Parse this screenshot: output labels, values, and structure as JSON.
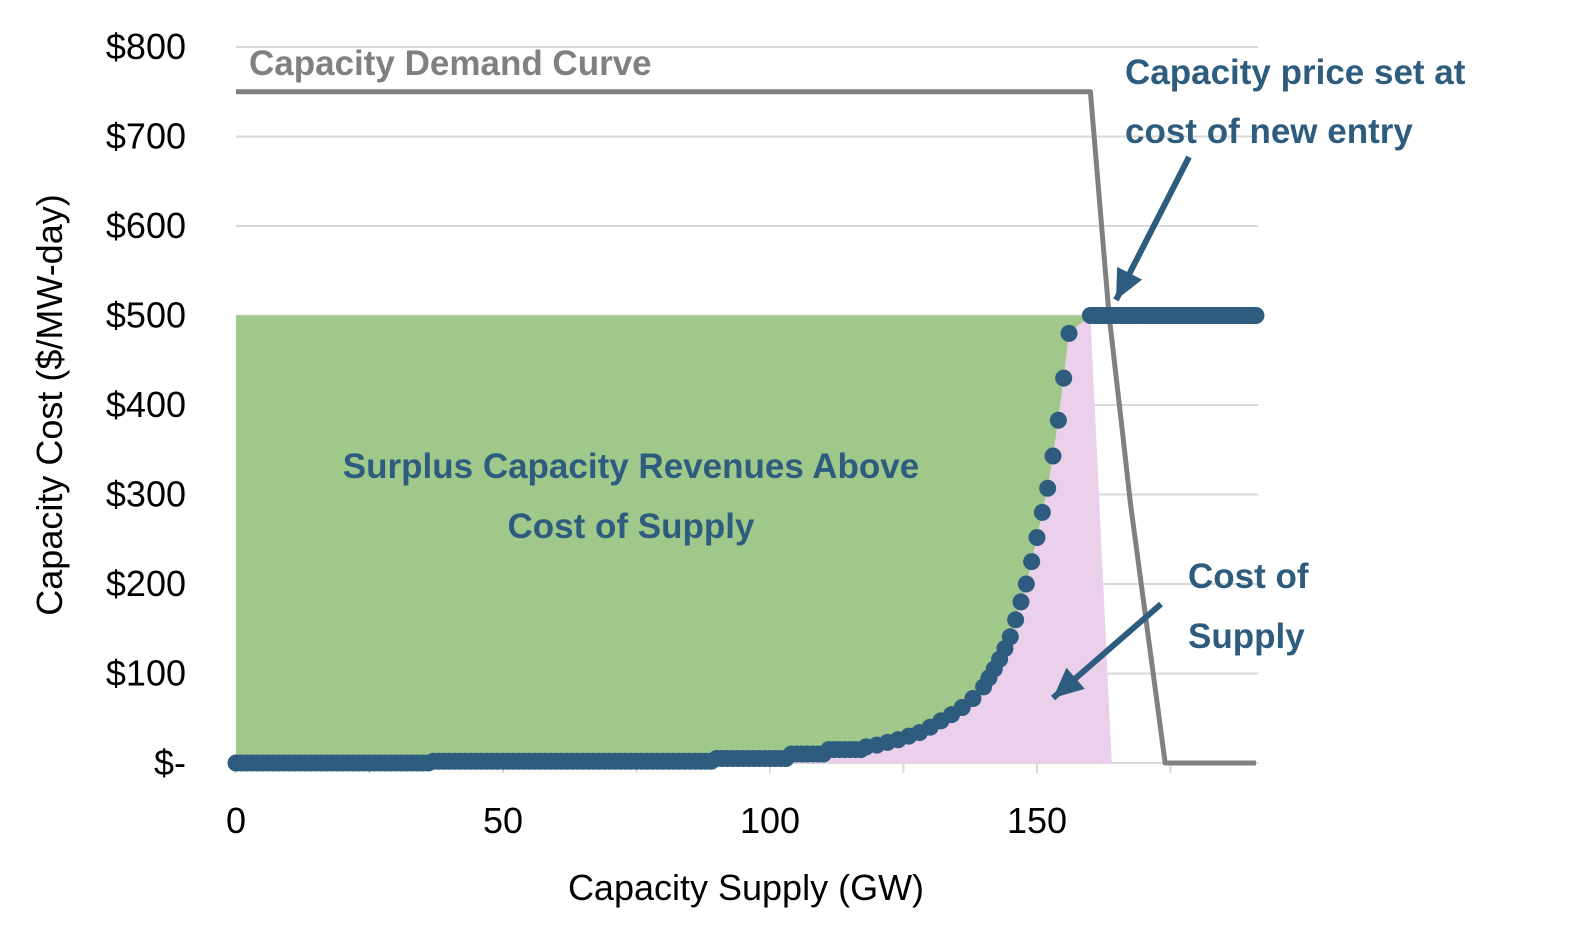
{
  "chart_data": {
    "type": "scatter",
    "xlabel": "Capacity Supply (GW)",
    "ylabel": "Capacity Cost ($/MW-day)",
    "xlim": [
      0,
      190
    ],
    "ylim": [
      0,
      800
    ],
    "x_ticks": [
      "0",
      "50",
      "100",
      "150"
    ],
    "y_ticks": [
      "$-",
      "$100",
      "$200",
      "$300",
      "$400",
      "$500",
      "$600",
      "$700",
      "$800"
    ],
    "grid": "horizontal",
    "colors": {
      "supply_points": "#2e5c7e",
      "demand_curve": "#808080",
      "surplus_area": "#a0c88a",
      "cost_area": "#ead0ea",
      "annotation": "#2e5c7e",
      "demand_label": "#808080",
      "gridline": "#d9d9d9"
    },
    "series": [
      {
        "name": "Capacity Demand Curve",
        "kind": "line",
        "points": [
          [
            0,
            750
          ],
          [
            160,
            750
          ],
          [
            163.5,
            500
          ],
          [
            166,
            370
          ],
          [
            167.5,
            290
          ],
          [
            174,
            0
          ],
          [
            191,
            0
          ]
        ]
      },
      {
        "kind": "scatter",
        "segments": [
          {
            "x_from": 0,
            "x_to": 36,
            "y": 0
          },
          {
            "x_from": 37,
            "x_to": 89,
            "y": 2
          },
          {
            "x_from": 90,
            "x_to": 103,
            "y": 5
          },
          {
            "x_from": 104,
            "x_to": 110,
            "y": 10
          },
          {
            "x_from": 111,
            "x_to": 117,
            "y": 15
          }
        ],
        "points": [
          [
            118,
            18
          ],
          [
            120,
            20
          ],
          [
            122,
            23
          ],
          [
            124,
            26
          ],
          [
            126,
            30
          ],
          [
            128,
            34
          ],
          [
            130,
            40
          ],
          [
            132,
            47
          ],
          [
            134,
            54
          ],
          [
            136,
            62
          ],
          [
            138,
            72
          ],
          [
            140,
            85
          ],
          [
            141,
            95
          ],
          [
            142,
            105
          ],
          [
            143,
            116
          ],
          [
            144,
            128
          ],
          [
            145,
            141
          ],
          [
            146,
            160
          ],
          [
            147,
            180
          ],
          [
            148,
            200
          ],
          [
            149,
            225
          ],
          [
            150,
            252
          ],
          [
            151,
            280
          ],
          [
            152,
            307
          ],
          [
            153,
            343
          ],
          [
            154,
            383
          ],
          [
            155,
            430
          ],
          [
            156,
            480
          ]
        ]
      },
      {
        "kind": "scatter",
        "segments": [
          {
            "x_from": 160,
            "x_to": 191,
            "y": 500
          }
        ]
      }
    ],
    "areas": [
      {
        "label": "Surplus Capacity Revenues Above Cost of Supply"
      },
      {
        "label": "Cost of Supply"
      }
    ],
    "annotations": {
      "demand_label": "Capacity Demand Curve",
      "surplus_line1": "Surplus Capacity Revenues Above",
      "surplus_line2": "Cost of Supply",
      "cost_line1": "Cost of",
      "cost_line2": "Supply",
      "price_line1": "Capacity price set at",
      "price_line2": "cost of new entry"
    }
  }
}
